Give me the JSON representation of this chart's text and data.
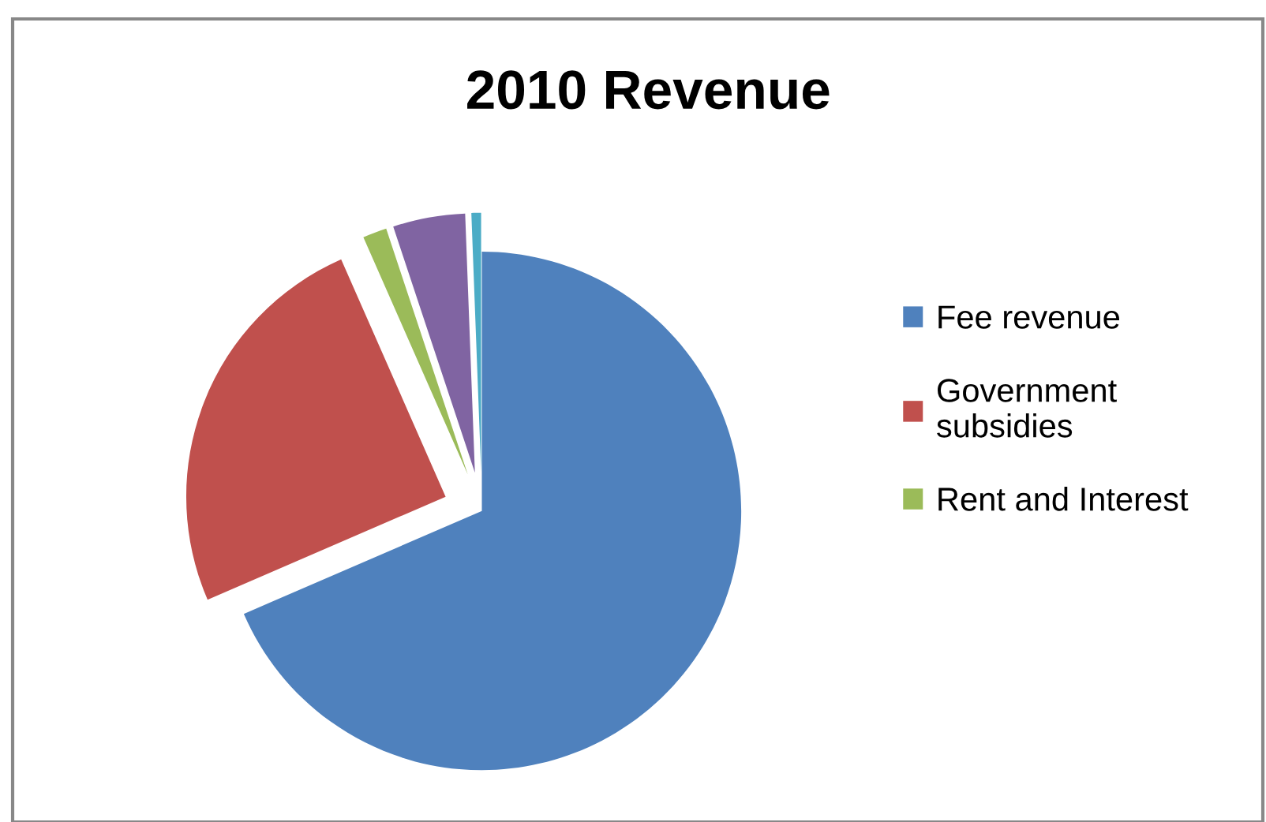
{
  "chart_data": {
    "type": "pie",
    "title": "2010 Revenue",
    "categories": [
      "Fee revenue",
      "Government subsidies",
      "Rent and Interest",
      null,
      null
    ],
    "values": [
      68.5,
      24.9,
      1.5,
      4.5,
      0.6
    ],
    "colors": [
      "#4f81bd",
      "#c0504d",
      "#9bbb59",
      "#8064a2",
      "#4bacc6"
    ],
    "legend": "right"
  }
}
